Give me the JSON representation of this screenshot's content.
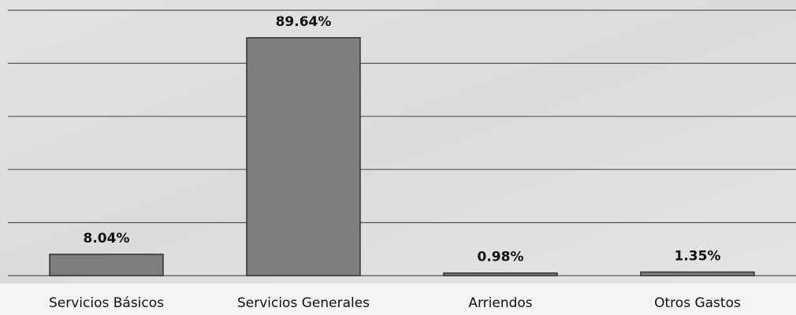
{
  "chart_data": {
    "type": "bar",
    "categories": [
      "Servicios Básicos",
      "Servicios Generales",
      "Arriendos",
      "Otros Gastos"
    ],
    "values": [
      8.04,
      89.64,
      0.98,
      1.35
    ],
    "value_labels": [
      "8.04%",
      "89.64%",
      "0.98%",
      "1.35%"
    ],
    "color": "#7d7d7d",
    "ylim": [
      0,
      100
    ],
    "yticks": [
      0,
      20,
      40,
      60,
      80,
      100
    ],
    "grid": true
  }
}
